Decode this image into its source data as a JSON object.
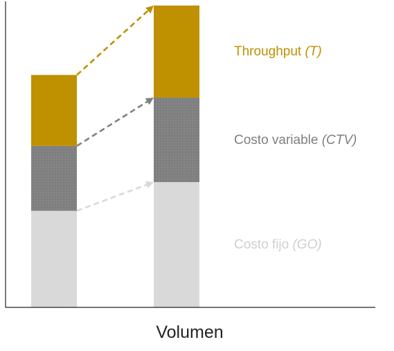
{
  "chart_data": {
    "type": "bar",
    "stacked": true,
    "categories": [
      "",
      ""
    ],
    "xlabel": "Volumen",
    "ylabel": "",
    "ylim": [
      0,
      100
    ],
    "series": [
      {
        "name": "Costo fijo",
        "abbr": "(GO)",
        "values": [
          32,
          41.5
        ],
        "color": "#d9d9d9",
        "arrow_color": "#d9d9d9"
      },
      {
        "name": "Costo variable",
        "abbr": "(CTV)",
        "values": [
          21.5,
          28
        ],
        "color": "#7f7f7f",
        "arrow_color": "#808080"
      },
      {
        "name": "Throughput",
        "abbr": "(T)",
        "values": [
          23.5,
          30.5
        ],
        "color": "#bf9000",
        "arrow_color": "#bf9000"
      }
    ],
    "legend_placement": "right",
    "grid": false
  }
}
